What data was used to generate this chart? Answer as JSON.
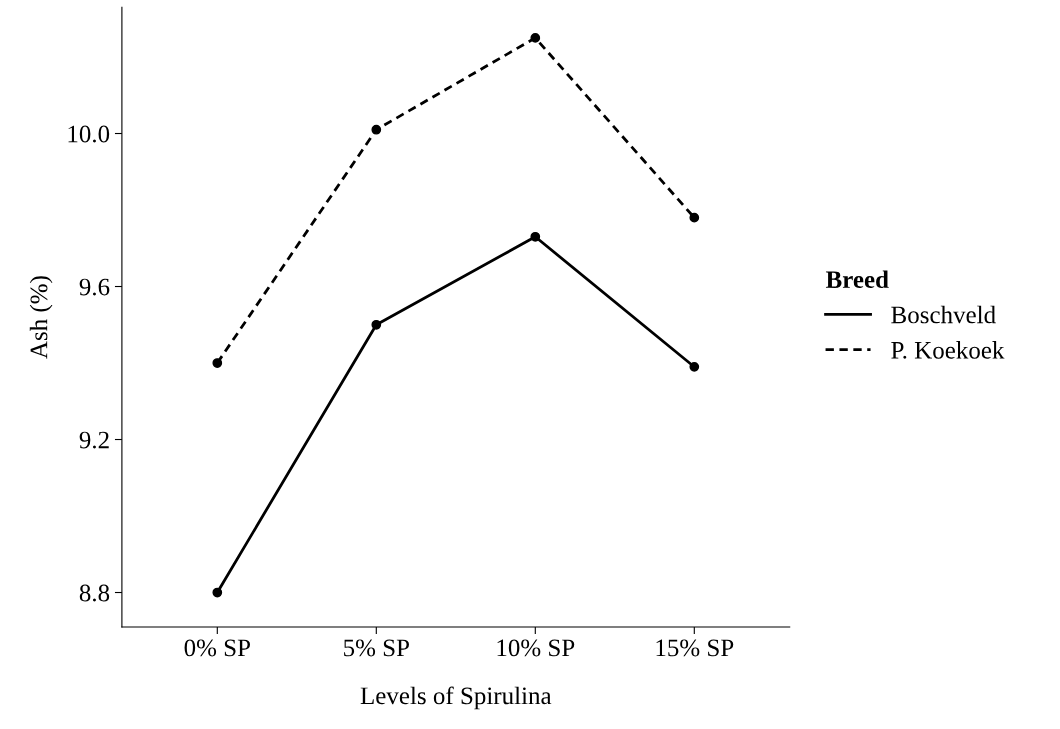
{
  "chart_data": {
    "type": "line",
    "xlabel": "Levels of Spirulina",
    "ylabel": "Ash (%)",
    "legend_title": "Breed",
    "categories": [
      "0% SP",
      "5% SP",
      "10% SP",
      "15% SP"
    ],
    "series": [
      {
        "name": "Boschveld",
        "color": "#000000",
        "line_style": "solid",
        "values": [
          8.8,
          9.5,
          9.73,
          9.39
        ]
      },
      {
        "name": "P. Koekoek",
        "color": "#000000",
        "line_style": "dashed",
        "values": [
          9.4,
          10.01,
          10.25,
          9.78
        ]
      }
    ],
    "ylim": [
      8.71,
      10.33
    ],
    "yticks": [
      {
        "value": 8.8,
        "label": "8.8"
      },
      {
        "value": 9.2,
        "label": "9.2"
      },
      {
        "value": 9.6,
        "label": "9.6"
      },
      {
        "value": 10.0,
        "label": "10.0"
      }
    ],
    "grid": false,
    "legend": "right",
    "marker": "circle"
  }
}
